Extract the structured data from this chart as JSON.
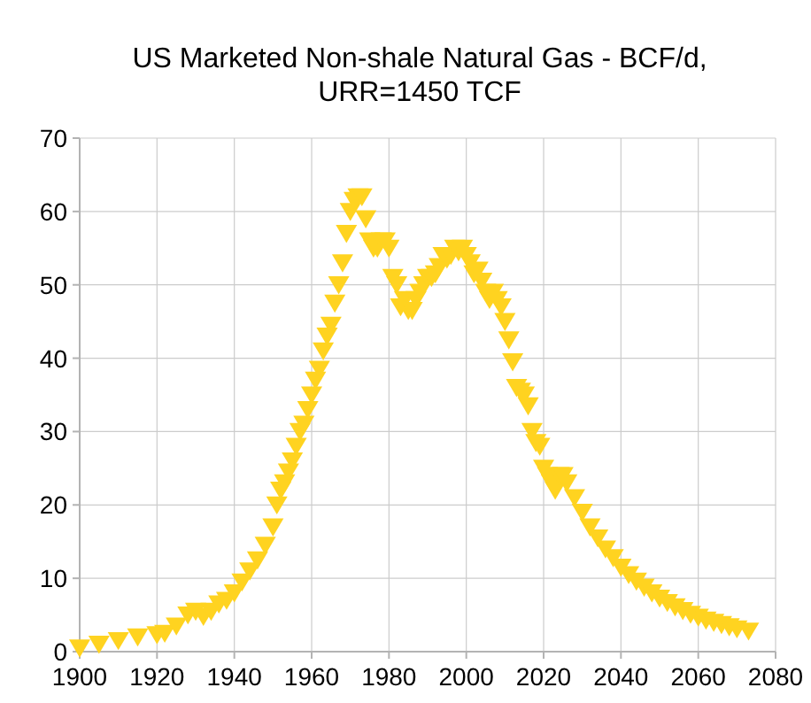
{
  "chart_data": {
    "type": "scatter",
    "title": "US Marketed Non-shale Natural Gas - BCF/d, URR=1450 TCF",
    "marker": "triangle-down",
    "grid": true,
    "xlim": [
      1900,
      2080
    ],
    "xticks": [
      1900,
      1920,
      1940,
      1960,
      1980,
      2000,
      2020,
      2040,
      2060,
      2080
    ],
    "ylim": [
      0,
      70
    ],
    "yticks": [
      0,
      10,
      20,
      30,
      40,
      50,
      60,
      70
    ],
    "series": [
      {
        "color": "#ffd320",
        "x": [
          1900,
          1905,
          1910,
          1915,
          1920,
          1922,
          1925,
          1928,
          1930,
          1932,
          1934,
          1936,
          1938,
          1940,
          1942,
          1944,
          1946,
          1948,
          1950,
          1951,
          1952,
          1953,
          1954,
          1955,
          1956,
          1957,
          1958,
          1959,
          1960,
          1961,
          1962,
          1963,
          1964,
          1965,
          1966,
          1967,
          1968,
          1969,
          1970,
          1971,
          1972,
          1973,
          1974,
          1975,
          1976,
          1977,
          1978,
          1979,
          1980,
          1981,
          1982,
          1983,
          1984,
          1985,
          1986,
          1987,
          1988,
          1989,
          1990,
          1991,
          1992,
          1993,
          1994,
          1995,
          1996,
          1997,
          1998,
          1999,
          2000,
          2001,
          2002,
          2003,
          2004,
          2005,
          2006,
          2007,
          2008,
          2009,
          2010,
          2011,
          2012,
          2013,
          2014,
          2015,
          2016,
          2017,
          2018,
          2019,
          2020,
          2021,
          2022,
          2023,
          2024,
          2025,
          2026,
          2028,
          2030,
          2032,
          2034,
          2036,
          2038,
          2040,
          2042,
          2044,
          2046,
          2048,
          2050,
          2052,
          2054,
          2056,
          2058,
          2060,
          2062,
          2064,
          2066,
          2068,
          2070,
          2073
        ],
        "values": [
          0.5,
          1,
          1.5,
          2,
          2.3,
          2.5,
          3.5,
          5,
          5.5,
          4.8,
          5.5,
          6.5,
          7,
          8,
          9.5,
          11,
          12.5,
          14.5,
          17,
          20,
          22,
          23,
          24.5,
          26,
          28,
          30,
          31,
          33,
          35,
          37,
          38.5,
          41,
          43,
          44.5,
          47.5,
          50,
          53,
          57,
          60,
          61.5,
          62,
          62,
          59,
          56,
          55,
          55,
          56,
          56,
          55,
          51,
          50,
          47,
          48,
          46.5,
          46.5,
          48,
          49,
          50,
          51,
          51,
          51.5,
          52.5,
          54,
          53.5,
          54,
          55,
          54.5,
          55,
          54,
          53,
          51.5,
          52,
          50.5,
          49,
          48,
          49,
          48,
          47,
          45,
          42.5,
          39.5,
          36,
          35.5,
          35,
          33.5,
          30,
          28.5,
          28,
          25,
          24,
          23,
          22,
          24,
          24,
          23,
          21,
          19,
          17,
          15.5,
          14,
          12.8,
          11.5,
          10.5,
          9.6,
          8.8,
          8,
          7.3,
          6.7,
          6.1,
          5.6,
          5.1,
          4.7,
          4.3,
          4,
          3.7,
          3.4,
          3.1,
          2.8
        ]
      }
    ]
  }
}
